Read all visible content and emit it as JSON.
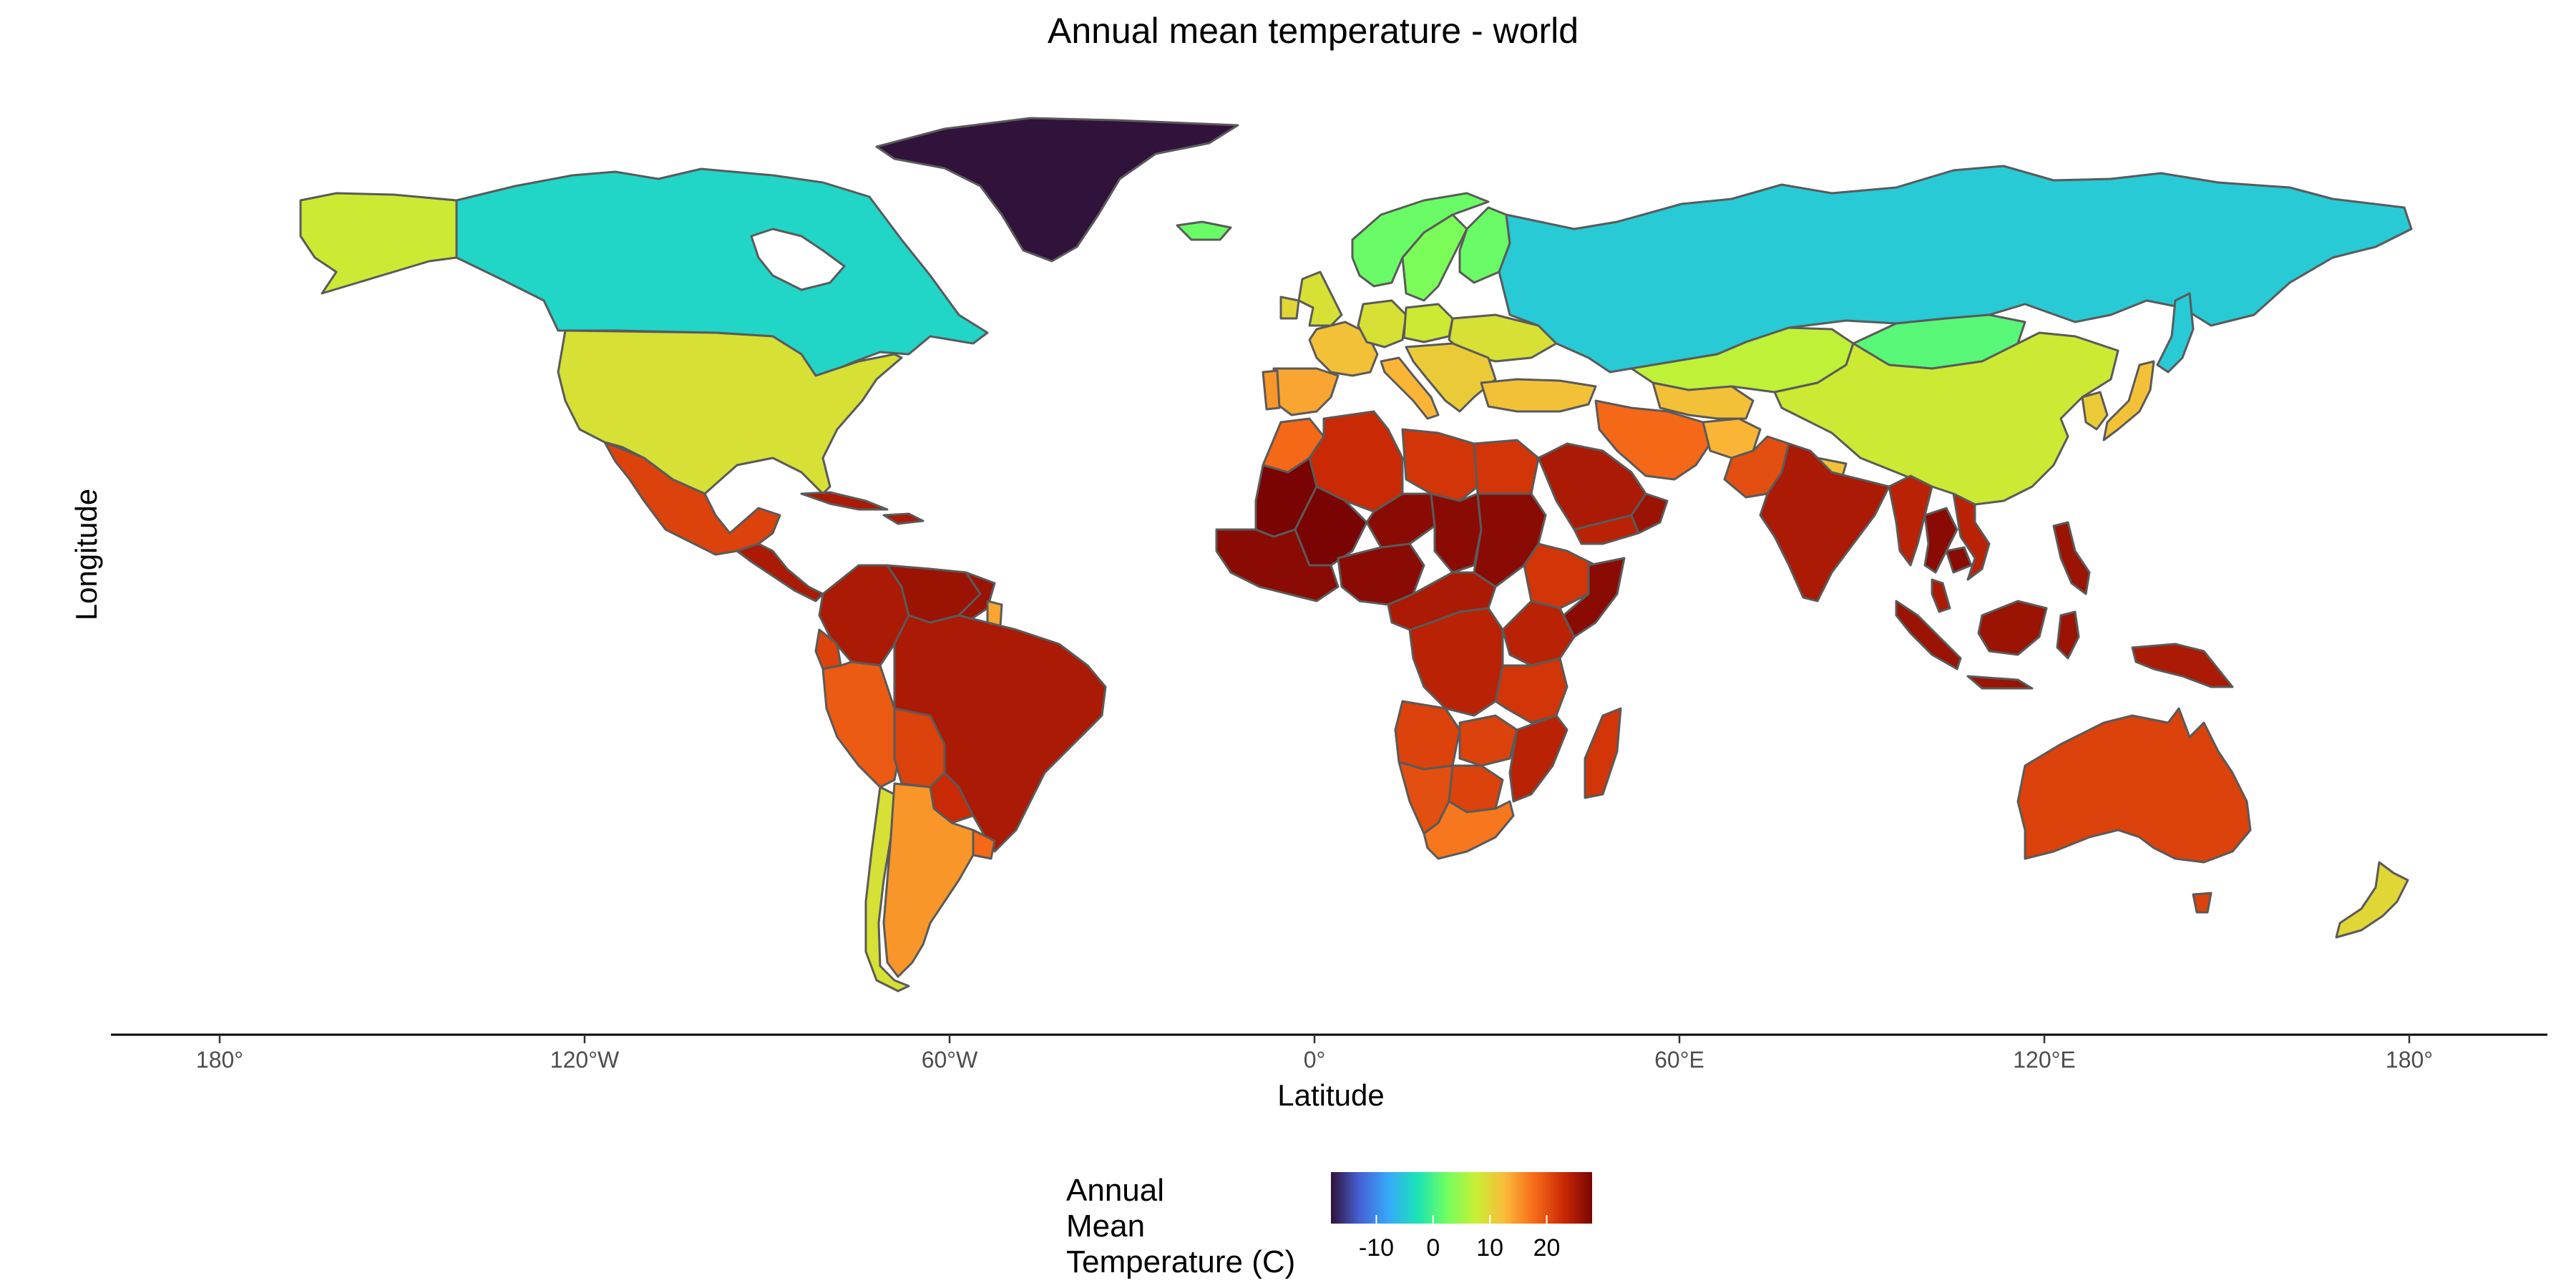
{
  "title": "Annual mean temperature - world",
  "x_axis": {
    "title": "Latitude",
    "ticks": [
      {
        "value": -180,
        "label": "180°"
      },
      {
        "value": -120,
        "label": "120°W"
      },
      {
        "value": -60,
        "label": "60°W"
      },
      {
        "value": 0,
        "label": "0°"
      },
      {
        "value": 60,
        "label": "60°E"
      },
      {
        "value": 120,
        "label": "120°E"
      },
      {
        "value": 180,
        "label": "180°"
      }
    ]
  },
  "y_axis": {
    "title": "Longitude"
  },
  "legend": {
    "title_lines": [
      "Annual",
      "Mean",
      "Temperature (C)"
    ],
    "range": [
      -18,
      28
    ],
    "ticks": [
      {
        "value": -10,
        "label": "-10"
      },
      {
        "value": 0,
        "label": "0"
      },
      {
        "value": 10,
        "label": "10"
      },
      {
        "value": 20,
        "label": "20"
      }
    ],
    "colors": [
      "#30123b",
      "#4662d7",
      "#36aaf9",
      "#1ae4b6",
      "#72fe5e",
      "#c8ef34",
      "#faba39",
      "#f66b19",
      "#cb2a04",
      "#7a0403"
    ]
  },
  "colors": {
    "border": "#5a5a5a",
    "axis": "#000000"
  },
  "chart_data": {
    "type": "choropleth",
    "variable": "Annual Mean Temperature (C)",
    "regions": [
      {
        "name": "Greenland",
        "value": -18
      },
      {
        "name": "Canada",
        "value": -4
      },
      {
        "name": "Alaska (USA)",
        "value": 8
      },
      {
        "name": "United States",
        "value": 9
      },
      {
        "name": "Mexico",
        "value": 21
      },
      {
        "name": "Central America",
        "value": 25
      },
      {
        "name": "Cuba",
        "value": 25
      },
      {
        "name": "Colombia",
        "value": 25
      },
      {
        "name": "Venezuela",
        "value": 26
      },
      {
        "name": "Guyana",
        "value": 26
      },
      {
        "name": "French Guiana",
        "value": 14
      },
      {
        "name": "Peru",
        "value": 19
      },
      {
        "name": "Ecuador",
        "value": 21
      },
      {
        "name": "Brazil",
        "value": 25
      },
      {
        "name": "Bolivia",
        "value": 21
      },
      {
        "name": "Paraguay",
        "value": 23
      },
      {
        "name": "Uruguay",
        "value": 18
      },
      {
        "name": "Chile",
        "value": 9
      },
      {
        "name": "Argentina",
        "value": 15
      },
      {
        "name": "Iceland",
        "value": 2
      },
      {
        "name": "Norway",
        "value": 2
      },
      {
        "name": "Sweden",
        "value": 3
      },
      {
        "name": "Finland",
        "value": 2
      },
      {
        "name": "United Kingdom",
        "value": 9
      },
      {
        "name": "Ireland",
        "value": 10
      },
      {
        "name": "France",
        "value": 12
      },
      {
        "name": "Spain",
        "value": 14
      },
      {
        "name": "Portugal",
        "value": 15
      },
      {
        "name": "Germany",
        "value": 9
      },
      {
        "name": "Poland",
        "value": 8
      },
      {
        "name": "Ukraine",
        "value": 9
      },
      {
        "name": "Italy",
        "value": 13
      },
      {
        "name": "Balkans",
        "value": 11
      },
      {
        "name": "Turkey",
        "value": 12
      },
      {
        "name": "Russia",
        "value": -5
      },
      {
        "name": "Kazakhstan",
        "value": 7
      },
      {
        "name": "Mongolia",
        "value": 1
      },
      {
        "name": "China",
        "value": 8
      },
      {
        "name": "Central Asia",
        "value": 12
      },
      {
        "name": "Iran",
        "value": 18
      },
      {
        "name": "Afghanistan",
        "value": 13
      },
      {
        "name": "Pakistan",
        "value": 20
      },
      {
        "name": "India",
        "value": 25
      },
      {
        "name": "Nepal",
        "value": 12
      },
      {
        "name": "Myanmar",
        "value": 24
      },
      {
        "name": "Thailand",
        "value": 27
      },
      {
        "name": "Cambodia",
        "value": 27
      },
      {
        "name": "Vietnam",
        "value": 24
      },
      {
        "name": "Japan",
        "value": 12
      },
      {
        "name": "Korea",
        "value": 11
      },
      {
        "name": "Philippines",
        "value": 26
      },
      {
        "name": "Malaysia",
        "value": 25
      },
      {
        "name": "Indonesia",
        "value": 26
      },
      {
        "name": "Papua New Guinea",
        "value": 25
      },
      {
        "name": "Morocco",
        "value": 18
      },
      {
        "name": "Algeria",
        "value": 23
      },
      {
        "name": "Libya",
        "value": 22
      },
      {
        "name": "Egypt",
        "value": 22
      },
      {
        "name": "Mauritania",
        "value": 28
      },
      {
        "name": "Mali",
        "value": 28
      },
      {
        "name": "Niger",
        "value": 27
      },
      {
        "name": "Chad",
        "value": 27
      },
      {
        "name": "Sudan",
        "value": 27
      },
      {
        "name": "West Africa",
        "value": 27
      },
      {
        "name": "Nigeria",
        "value": 27
      },
      {
        "name": "Ethiopia",
        "value": 22
      },
      {
        "name": "Somalia",
        "value": 27
      },
      {
        "name": "Saudi Arabia",
        "value": 25
      },
      {
        "name": "Yemen",
        "value": 24
      },
      {
        "name": "Oman",
        "value": 26
      },
      {
        "name": "Central Africa",
        "value": 25
      },
      {
        "name": "DR Congo",
        "value": 24
      },
      {
        "name": "Kenya",
        "value": 24
      },
      {
        "name": "Tanzania",
        "value": 22
      },
      {
        "name": "Angola",
        "value": 21
      },
      {
        "name": "Zambia",
        "value": 21
      },
      {
        "name": "Mozambique",
        "value": 24
      },
      {
        "name": "Namibia",
        "value": 20
      },
      {
        "name": "Botswana",
        "value": 21
      },
      {
        "name": "South Africa",
        "value": 17
      },
      {
        "name": "Madagascar",
        "value": 22
      },
      {
        "name": "Australia",
        "value": 21
      },
      {
        "name": "Tasmania",
        "value": 21
      },
      {
        "name": "New Zealand",
        "value": 10
      }
    ]
  }
}
